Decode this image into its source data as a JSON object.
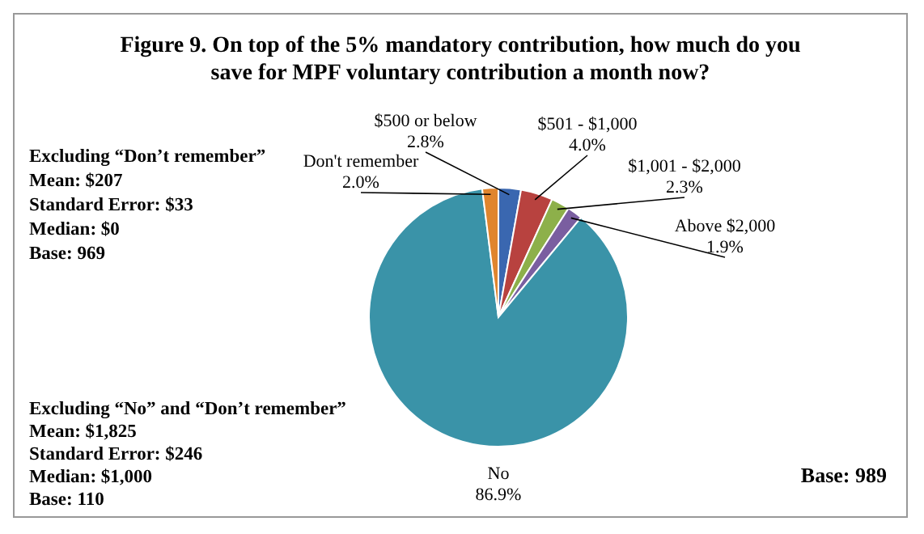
{
  "chart_data": {
    "type": "pie",
    "title": "Figure 9. On top of the 5% mandatory contribution, how much do you save for MPF voluntary contribution a month now?",
    "categories": [
      "$500 or below",
      "$501 - $1,000",
      "$1,001 - $2,000",
      "Above $2,000",
      "No",
      "Don't remember"
    ],
    "values": [
      2.8,
      4.0,
      2.3,
      1.9,
      86.9,
      2.0
    ],
    "value_labels": [
      "2.8%",
      "4.0%",
      "2.3%",
      "1.9%",
      "86.9%",
      "2.0%"
    ],
    "colors": [
      "#3a67b0",
      "#b8423f",
      "#8db04a",
      "#7a5ea0",
      "#3a93a8",
      "#e0852e"
    ],
    "annotations": [
      "Excluding “Don’t remember”",
      "Mean: $207",
      "Standard Error: $33",
      "Median: $0",
      "Base: 969",
      "Excluding “No” and “Don’t remember”",
      "Mean: $1,825",
      "Standard Error: $246",
      "Median: $1,000",
      "Base: 110",
      "Base: 989"
    ],
    "data_labels": true,
    "legend": false
  }
}
